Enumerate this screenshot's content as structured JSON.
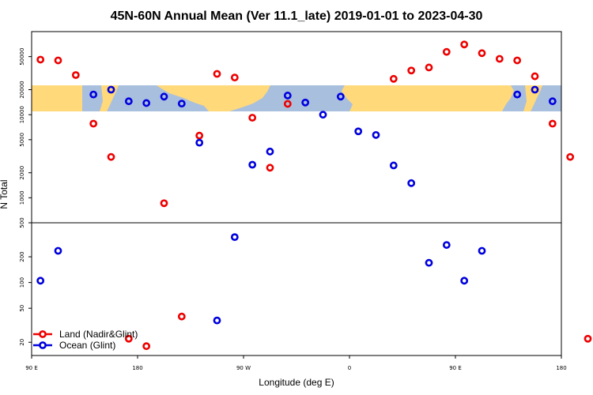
{
  "chart_data": {
    "type": "scatter",
    "title": "45N-60N Annual Mean (Ver 11.1_late)   2019-01-01 to 2023-04-30",
    "xlabel": "Longitude (deg E)",
    "ylabel": "N Total",
    "y_scale": "log",
    "x_ticks": [
      {
        "lon": -270,
        "label": "90 E"
      },
      {
        "lon": -180,
        "label": "180"
      },
      {
        "lon": -90,
        "label": "90 W"
      },
      {
        "lon": 0,
        "label": "0"
      },
      {
        "lon": 90,
        "label": "90 E"
      },
      {
        "lon": 180,
        "label": "180"
      }
    ],
    "upper_panel": {
      "ylim": [
        500,
        100000
      ],
      "y_ticks": [
        {
          "v": 500,
          "label": "500"
        },
        {
          "v": 1000,
          "label": "1000"
        },
        {
          "v": 2000,
          "label": "2000"
        },
        {
          "v": 5000,
          "label": "5000"
        },
        {
          "v": 10000,
          "label": "10000"
        },
        {
          "v": 20000,
          "label": "20000"
        },
        {
          "v": 50000,
          "label": "50000"
        }
      ]
    },
    "lower_panel": {
      "ylim": [
        14,
        500
      ],
      "y_ticks": [
        {
          "v": 20,
          "label": "20"
        },
        {
          "v": 50,
          "label": "50"
        },
        {
          "v": 100,
          "label": "100"
        },
        {
          "v": 200,
          "label": "200"
        }
      ]
    },
    "map_band": {
      "lat_range": "45N-60N",
      "land_color": "#ffd97a",
      "ocean_color": "#a9bfde"
    },
    "series": [
      {
        "name": "Land (Nadir&Glint)",
        "color": "#ee0000",
        "points": [
          {
            "x": -262.5,
            "y": 46000
          },
          {
            "x": -247.5,
            "y": 45000
          },
          {
            "x": -232.5,
            "y": 30000
          },
          {
            "x": -217.5,
            "y": 7800
          },
          {
            "x": -202.5,
            "y": 3100
          },
          {
            "x": -187.5,
            "y": 22
          },
          {
            "x": -172.5,
            "y": 18
          },
          {
            "x": -157.5,
            "y": 860
          },
          {
            "x": -142.5,
            "y": 40
          },
          {
            "x": -127.5,
            "y": 5600
          },
          {
            "x": -112.5,
            "y": 31000
          },
          {
            "x": -97.5,
            "y": 28000
          },
          {
            "x": -82.5,
            "y": 9200
          },
          {
            "x": -67.5,
            "y": 2300
          },
          {
            "x": -52.5,
            "y": 13500
          },
          {
            "x": 37.5,
            "y": 27000
          },
          {
            "x": 52.5,
            "y": 34000
          },
          {
            "x": 67.5,
            "y": 37000
          },
          {
            "x": 82.5,
            "y": 57000
          },
          {
            "x": 97.5,
            "y": 70000
          },
          {
            "x": 112.5,
            "y": 55000
          },
          {
            "x": 127.5,
            "y": 47000
          },
          {
            "x": 142.5,
            "y": 45000
          },
          {
            "x": 157.5,
            "y": 29000
          },
          {
            "x": 172.5,
            "y": 7800
          },
          {
            "x": 187.5,
            "y": 3100
          },
          {
            "x": 202.5,
            "y": 22
          }
        ]
      },
      {
        "name": "Ocean (Glint)",
        "color": "#0000dd",
        "points": [
          {
            "x": -262.5,
            "y": 105
          },
          {
            "x": -247.5,
            "y": 235
          },
          {
            "x": -217.5,
            "y": 17500
          },
          {
            "x": -202.5,
            "y": 20000
          },
          {
            "x": -187.5,
            "y": 14500
          },
          {
            "x": -172.5,
            "y": 13800
          },
          {
            "x": -157.5,
            "y": 16500
          },
          {
            "x": -142.5,
            "y": 13600
          },
          {
            "x": -127.5,
            "y": 4600
          },
          {
            "x": -112.5,
            "y": 36
          },
          {
            "x": -97.5,
            "y": 340
          },
          {
            "x": -82.5,
            "y": 2500
          },
          {
            "x": -67.5,
            "y": 3600
          },
          {
            "x": -52.5,
            "y": 17000
          },
          {
            "x": -37.5,
            "y": 14000
          },
          {
            "x": -22.5,
            "y": 10000
          },
          {
            "x": -7.5,
            "y": 16500
          },
          {
            "x": 7.5,
            "y": 6300
          },
          {
            "x": 22.5,
            "y": 5700
          },
          {
            "x": 37.5,
            "y": 2450
          },
          {
            "x": 52.5,
            "y": 1500
          },
          {
            "x": 67.5,
            "y": 170
          },
          {
            "x": 82.5,
            "y": 275
          },
          {
            "x": 97.5,
            "y": 105
          },
          {
            "x": 112.5,
            "y": 235
          },
          {
            "x": 142.5,
            "y": 17500
          },
          {
            "x": 157.5,
            "y": 20000
          },
          {
            "x": 172.5,
            "y": 14500
          }
        ]
      }
    ],
    "legend": {
      "placement": "bottom-left",
      "entries": [
        {
          "label": "Land (Nadir&Glint)",
          "color": "#ee0000"
        },
        {
          "label": "Ocean (Glint)",
          "color": "#0000dd"
        }
      ]
    }
  }
}
